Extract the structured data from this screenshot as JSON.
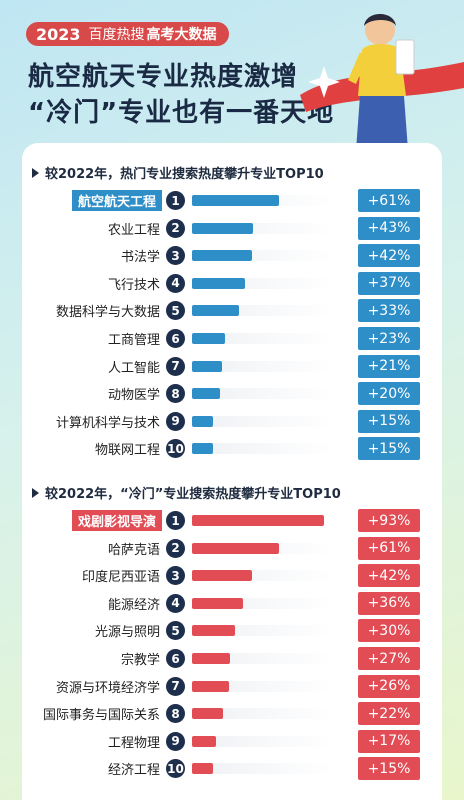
{
  "header": {
    "year": "2023",
    "badge_text": "百度热搜",
    "badge_bold": "高考大数据",
    "headline_line1": "航空航天专业热度激增",
    "headline_line2": "“冷门”专业也有一番天地"
  },
  "colors": {
    "blue": "#2e8ec8",
    "red": "#e24c55",
    "rank_bg": "#1e2f4d",
    "badge_red": "#d84a4a"
  },
  "hot": {
    "title": "较2022年，热门专业搜索热度攀升专业TOP10",
    "items": [
      {
        "name": "航空航天工程",
        "rank": "1",
        "pct": "+61%",
        "value": 61
      },
      {
        "name": "农业工程",
        "rank": "2",
        "pct": "+43%",
        "value": 43
      },
      {
        "name": "书法学",
        "rank": "3",
        "pct": "+42%",
        "value": 42
      },
      {
        "name": "飞行技术",
        "rank": "4",
        "pct": "+37%",
        "value": 37
      },
      {
        "name": "数据科学与大数据",
        "rank": "5",
        "pct": "+33%",
        "value": 33
      },
      {
        "name": "工商管理",
        "rank": "6",
        "pct": "+23%",
        "value": 23
      },
      {
        "name": "人工智能",
        "rank": "7",
        "pct": "+21%",
        "value": 21
      },
      {
        "name": "动物医学",
        "rank": "8",
        "pct": "+20%",
        "value": 20
      },
      {
        "name": "计算机科学与技术",
        "rank": "9",
        "pct": "+15%",
        "value": 15
      },
      {
        "name": "物联网工程",
        "rank": "10",
        "pct": "+15%",
        "value": 15
      }
    ]
  },
  "cold": {
    "title": "较2022年，“冷门”专业搜索热度攀升专业TOP10",
    "items": [
      {
        "name": "戏剧影视导演",
        "rank": "1",
        "pct": "+93%",
        "value": 93
      },
      {
        "name": "哈萨克语",
        "rank": "2",
        "pct": "+61%",
        "value": 61
      },
      {
        "name": "印度尼西亚语",
        "rank": "3",
        "pct": "+42%",
        "value": 42
      },
      {
        "name": "能源经济",
        "rank": "4",
        "pct": "+36%",
        "value": 36
      },
      {
        "name": "光源与照明",
        "rank": "5",
        "pct": "+30%",
        "value": 30
      },
      {
        "name": "宗教学",
        "rank": "6",
        "pct": "+27%",
        "value": 27
      },
      {
        "name": "资源与环境经济学",
        "rank": "7",
        "pct": "+26%",
        "value": 26
      },
      {
        "name": "国际事务与国际关系",
        "rank": "8",
        "pct": "+22%",
        "value": 22
      },
      {
        "name": "工程物理",
        "rank": "9",
        "pct": "+17%",
        "value": 17
      },
      {
        "name": "经济工程",
        "rank": "10",
        "pct": "+15%",
        "value": 15
      }
    ]
  }
}
